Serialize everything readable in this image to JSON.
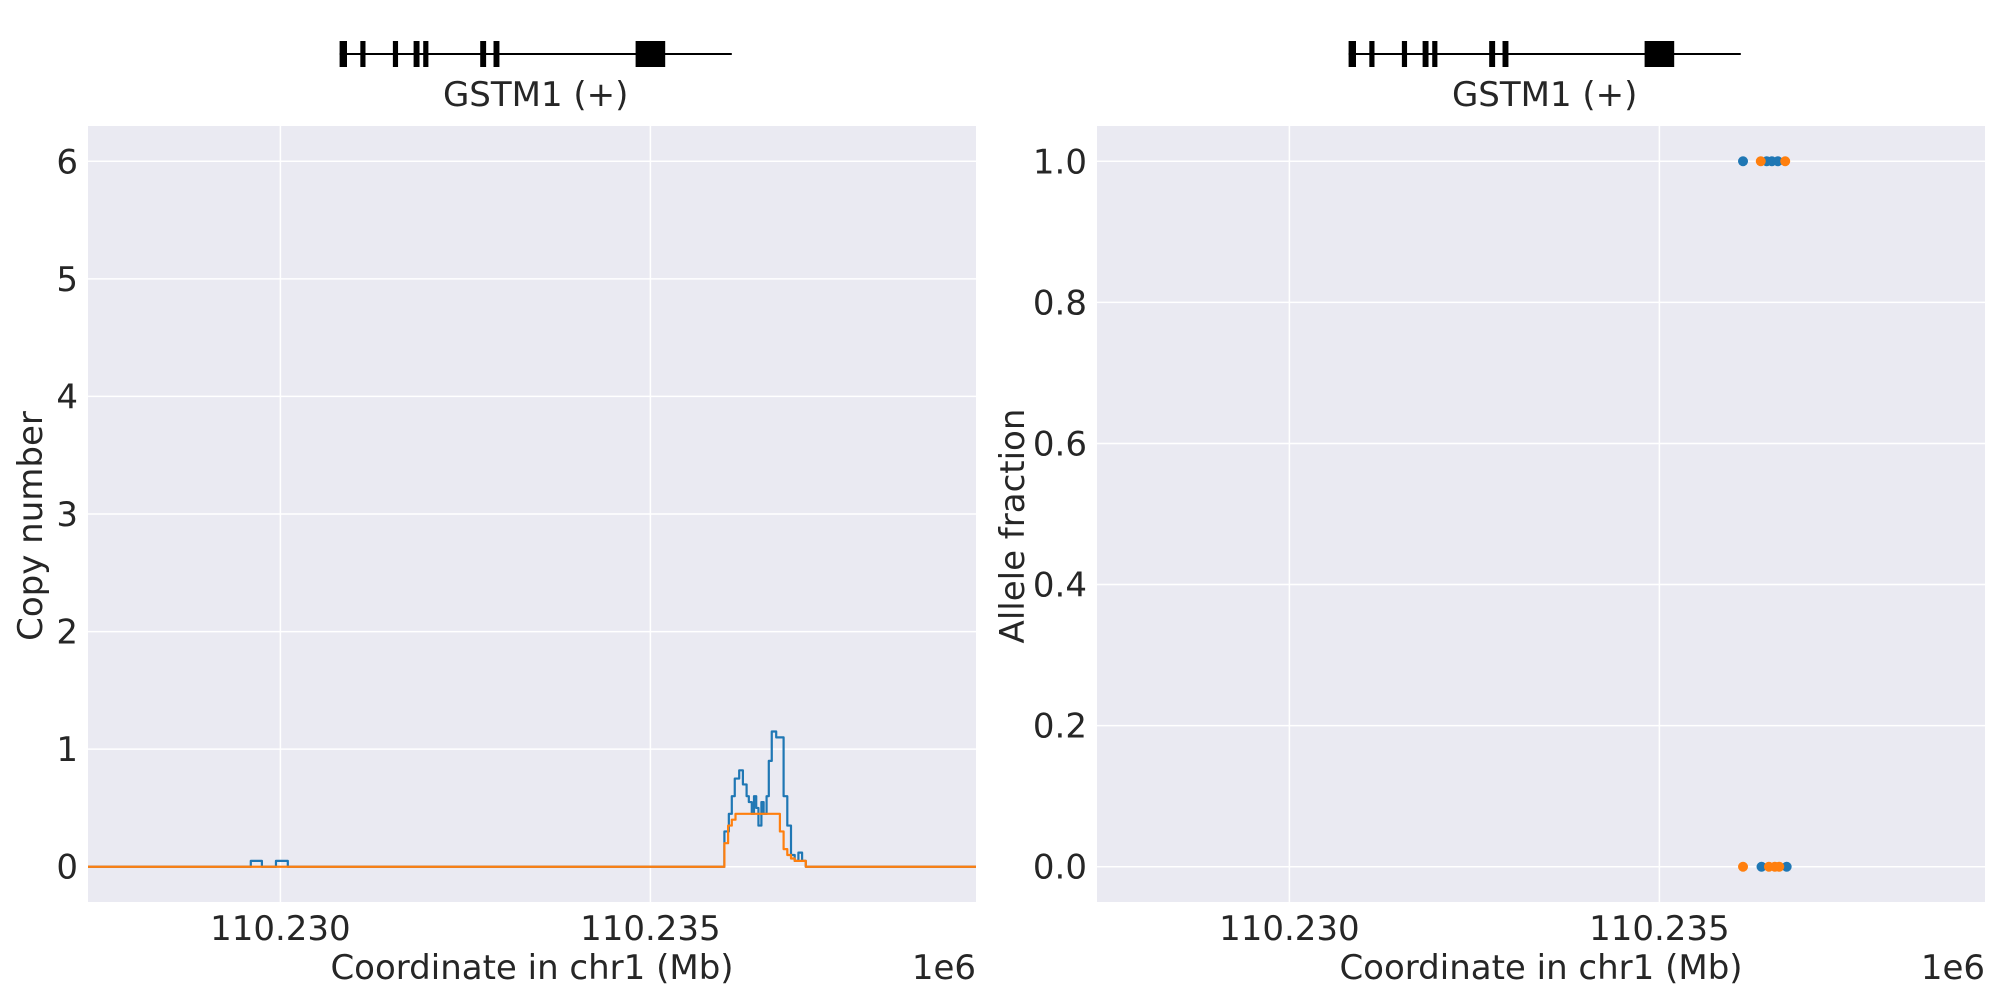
{
  "chart_data": [
    {
      "type": "line",
      "panel": "left",
      "gene": {
        "label": "GSTM1 (+)",
        "start": 110230800,
        "end": 110236100,
        "exons": [
          [
            110230800,
            110230900
          ],
          [
            110231080,
            110231150
          ],
          [
            110231520,
            110231590
          ],
          [
            110231800,
            110231880
          ],
          [
            110231930,
            110232000
          ],
          [
            110232700,
            110232780
          ],
          [
            110232880,
            110232960
          ],
          [
            110234800,
            110235200
          ]
        ]
      },
      "xlabel": "Coordinate in chr1 (Mb)",
      "ylabel": "Copy number",
      "offset_label": "1e6",
      "xlim": [
        110227400,
        110239400
      ],
      "ylim": [
        -0.3,
        6.3
      ],
      "xticks": [
        110230000,
        110235000
      ],
      "xtick_labels": [
        "110.230",
        "110.235"
      ],
      "yticks": [
        0,
        1,
        2,
        3,
        4,
        5,
        6
      ],
      "ytick_labels": [
        "0",
        "1",
        "2",
        "3",
        "4",
        "5",
        "6"
      ],
      "grid": true,
      "series": [
        {
          "color": "#1f77b4",
          "step": true,
          "x": [
            110227400,
            110229600,
            110229750,
            110229940,
            110230100,
            110236000,
            110236060,
            110236100,
            110236140,
            110236200,
            110236250,
            110236300,
            110236330,
            110236370,
            110236400,
            110236430,
            110236460,
            110236500,
            110236530,
            110236570,
            110236600,
            110236640,
            110236700,
            110236800,
            110236850,
            110236900,
            110236950,
            110237000,
            110237050,
            110237100,
            110237200,
            110239400
          ],
          "y": [
            0,
            0.05,
            0,
            0.05,
            0,
            0.3,
            0.45,
            0.6,
            0.75,
            0.82,
            0.7,
            0.6,
            0.55,
            0.45,
            0.6,
            0.5,
            0.35,
            0.55,
            0.45,
            0.6,
            0.9,
            1.15,
            1.1,
            0.6,
            0.35,
            0.1,
            0.05,
            0.12,
            0.05,
            0,
            0,
            0
          ]
        },
        {
          "color": "#ff7f0e",
          "step": true,
          "x": [
            110227400,
            110236000,
            110236050,
            110236100,
            110236150,
            110236300,
            110236600,
            110236750,
            110236800,
            110236850,
            110236900,
            110236950,
            110237000,
            110237100,
            110239400
          ],
          "y": [
            0,
            0.2,
            0.35,
            0.4,
            0.45,
            0.45,
            0.45,
            0.3,
            0.15,
            0.1,
            0.07,
            0.05,
            0.05,
            0,
            0
          ]
        }
      ]
    },
    {
      "type": "scatter",
      "panel": "right",
      "gene": {
        "label": "GSTM1 (+)",
        "start": 110230800,
        "end": 110236100,
        "exons": [
          [
            110230800,
            110230900
          ],
          [
            110231080,
            110231150
          ],
          [
            110231520,
            110231590
          ],
          [
            110231800,
            110231880
          ],
          [
            110231930,
            110232000
          ],
          [
            110232700,
            110232780
          ],
          [
            110232880,
            110232960
          ],
          [
            110234800,
            110235200
          ]
        ]
      },
      "xlabel": "Coordinate in chr1 (Mb)",
      "ylabel": "Allele fraction",
      "offset_label": "1e6",
      "xlim": [
        110227400,
        110239400
      ],
      "ylim": [
        -0.05,
        1.05
      ],
      "xticks": [
        110230000,
        110235000
      ],
      "xtick_labels": [
        "110.230",
        "110.235"
      ],
      "yticks": [
        0,
        0.2,
        0.4,
        0.6,
        0.8,
        1.0
      ],
      "ytick_labels": [
        "0.0",
        "0.2",
        "0.4",
        "0.6",
        "0.8",
        "1.0"
      ],
      "grid": true,
      "series": [
        {
          "color": "#1f77b4",
          "points": [
            [
              110236130,
              1.0
            ],
            [
              110236450,
              1.0
            ],
            [
              110236520,
              1.0
            ],
            [
              110236600,
              1.0
            ],
            [
              110236380,
              0.0
            ],
            [
              110236720,
              0.0
            ]
          ]
        },
        {
          "color": "#ff7f0e",
          "points": [
            [
              110236370,
              1.0
            ],
            [
              110236700,
              1.0
            ],
            [
              110236130,
              0.0
            ],
            [
              110236480,
              0.0
            ],
            [
              110236560,
              0.0
            ],
            [
              110236620,
              0.0
            ]
          ]
        }
      ]
    }
  ]
}
